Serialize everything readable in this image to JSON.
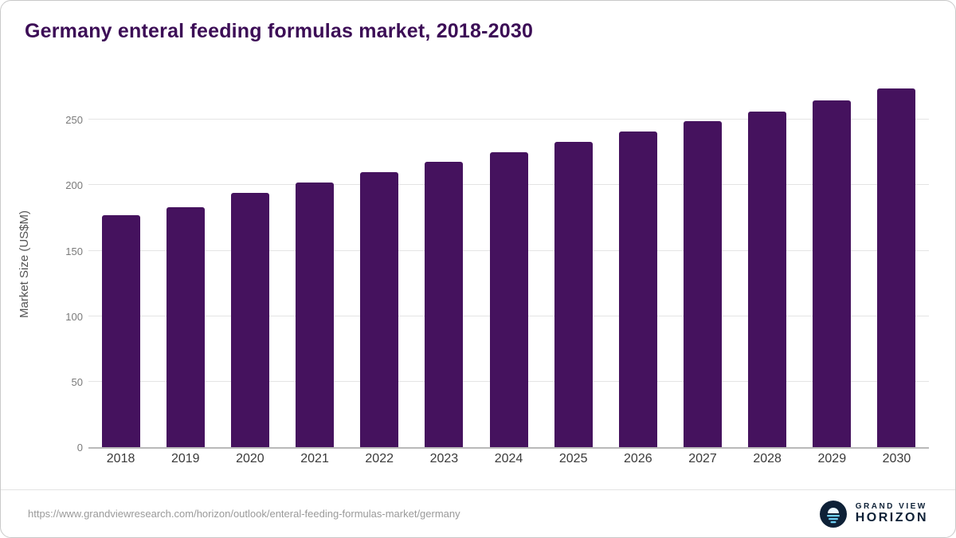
{
  "title": "Germany enteral feeding formulas market, 2018-2030",
  "chart_data": {
    "type": "bar",
    "categories": [
      "2018",
      "2019",
      "2020",
      "2021",
      "2022",
      "2023",
      "2024",
      "2025",
      "2026",
      "2027",
      "2028",
      "2029",
      "2030"
    ],
    "values": [
      177,
      183,
      194,
      202,
      210,
      218,
      225,
      233,
      241,
      249,
      256,
      265,
      274
    ],
    "title": "Germany enteral feeding formulas market, 2018-2030",
    "xlabel": "",
    "ylabel": "Market Size (US$M)",
    "ylim": [
      0,
      280
    ],
    "yticks": [
      0,
      50,
      100,
      150,
      200,
      250
    ],
    "grid": true,
    "legend": "none",
    "bar_color": "#45125e"
  },
  "colors": {
    "bar": "#45125e",
    "title": "#3c0d56",
    "gridline": "#e4e4e4",
    "brand_navy": "#0e2137",
    "brand_blue": "#6fd0f6"
  },
  "footer": {
    "source_url": "https://www.grandviewresearch.com/horizon/outlook/enteral-feeding-formulas-market/germany",
    "brand_line1": "GRAND VIEW",
    "brand_line2": "HORIZON"
  }
}
